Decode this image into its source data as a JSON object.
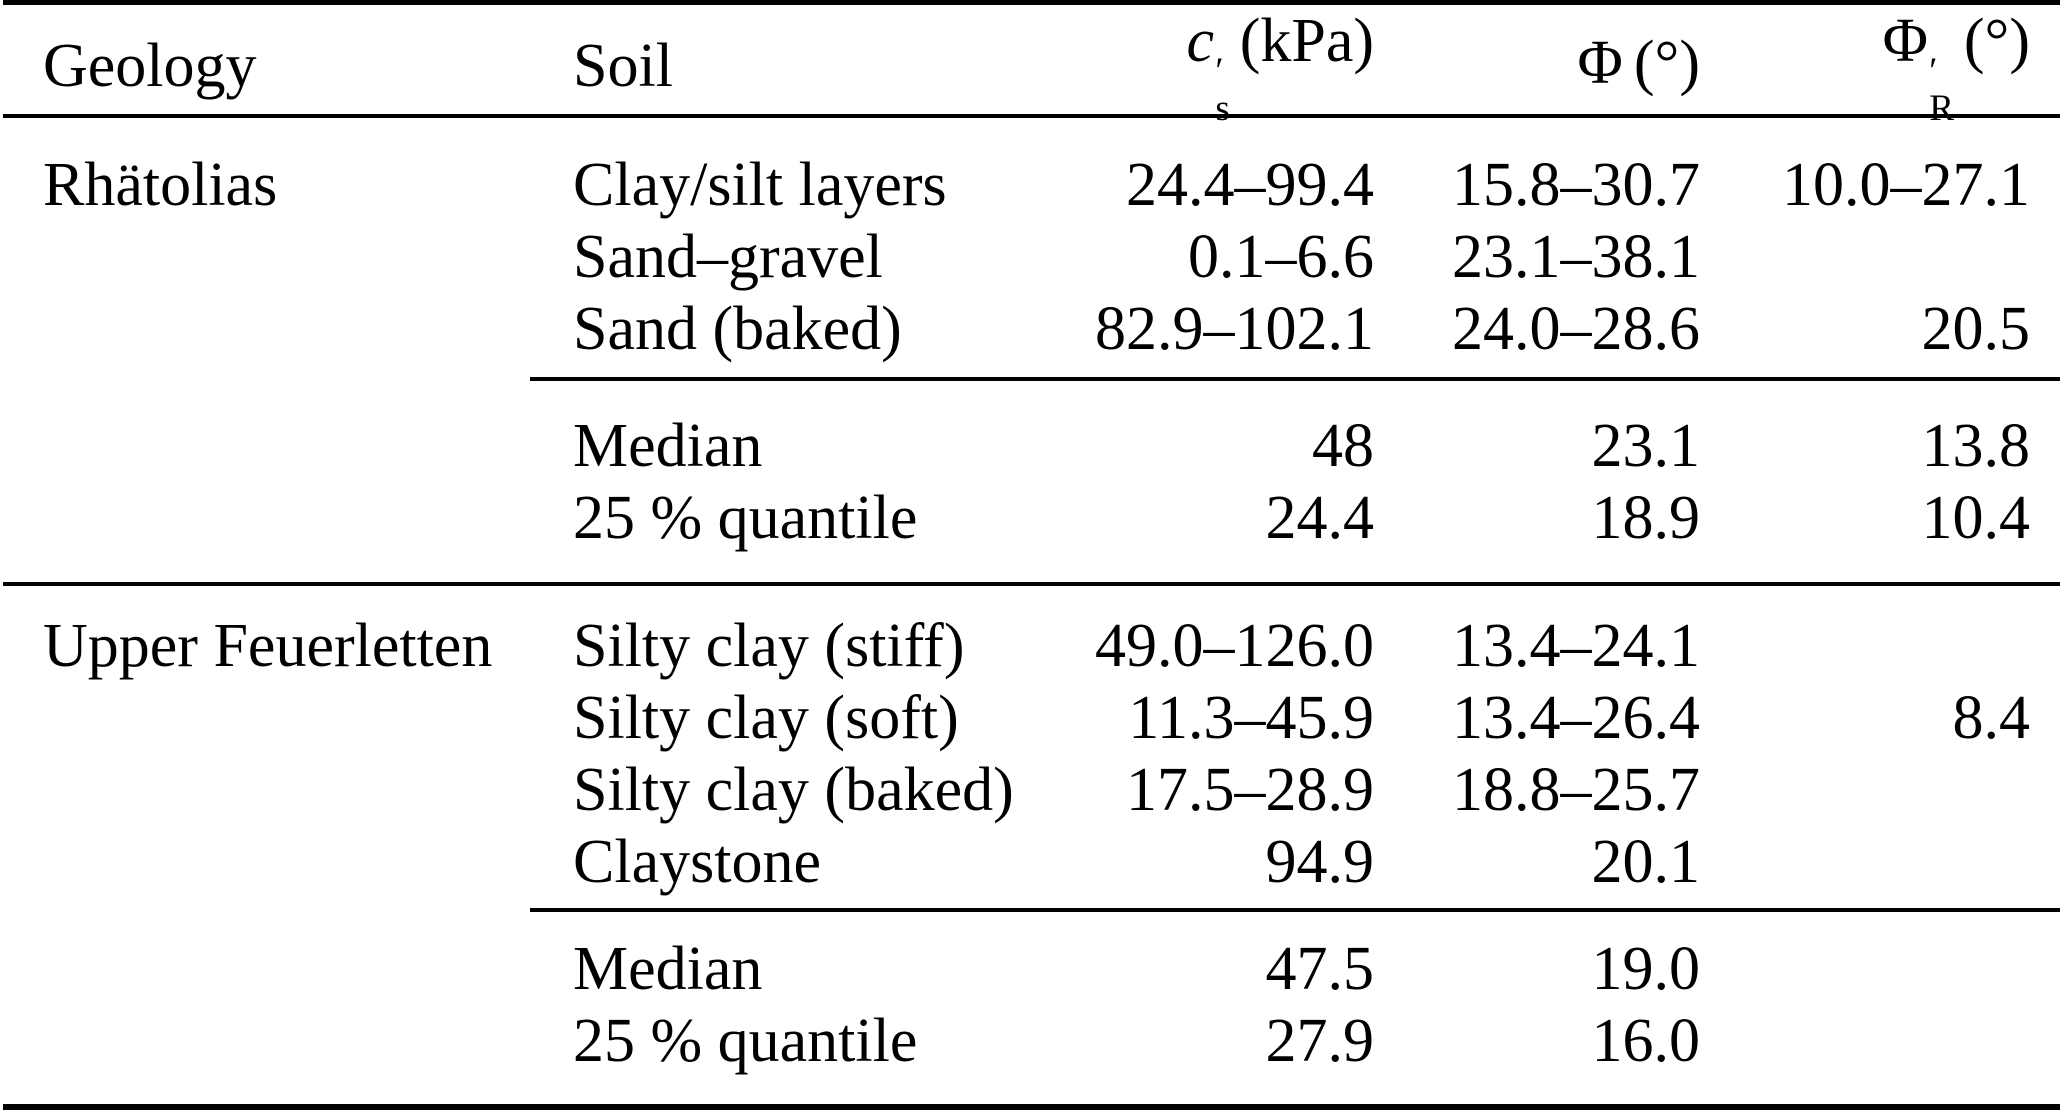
{
  "colors": {
    "text": "#000000",
    "background": "#ffffff",
    "rule": "#000000"
  },
  "table": {
    "columns": [
      {
        "label": "Geology"
      },
      {
        "label": "Soil"
      },
      {
        "base": "c",
        "prime": "′",
        "sub": "s",
        "unit": "(kPa)"
      },
      {
        "base": "Φ",
        "prime": "",
        "sub": "",
        "unit": "(°)"
      },
      {
        "base": "Φ",
        "prime": "′",
        "sub": "R",
        "unit": "(°)"
      }
    ],
    "sections": [
      {
        "geology": "Rhätolias",
        "soils": [
          {
            "soil": "Clay/silt layers",
            "c": "24.4–99.4",
            "phi": "15.8–30.7",
            "phiR": "10.0–27.1"
          },
          {
            "soil": "Sand–gravel",
            "c": "0.1–6.6",
            "phi": "23.1–38.1",
            "phiR": ""
          },
          {
            "soil": "Sand (baked)",
            "c": "82.9–102.1",
            "phi": "24.0–28.6",
            "phiR": "20.5"
          }
        ],
        "stats": [
          {
            "soil": "Median",
            "c": "48",
            "phi": "23.1",
            "phiR": "13.8"
          },
          {
            "soil": "25 % quantile",
            "c": "24.4",
            "phi": "18.9",
            "phiR": "10.4"
          }
        ]
      },
      {
        "geology": "Upper Feuerletten",
        "soils": [
          {
            "soil": "Silty clay (stiff)",
            "c": "49.0–126.0",
            "phi": "13.4–24.1",
            "phiR": ""
          },
          {
            "soil": "Silty clay (soft)",
            "c": "11.3–45.9",
            "phi": "13.4–26.4",
            "phiR": "8.4"
          },
          {
            "soil": "Silty clay (baked)",
            "c": "17.5–28.9",
            "phi": "18.8–25.7",
            "phiR": ""
          },
          {
            "soil": "Claystone",
            "c": "94.9",
            "phi": "20.1",
            "phiR": ""
          }
        ],
        "stats": [
          {
            "soil": "Median",
            "c": "47.5",
            "phi": "19.0",
            "phiR": ""
          },
          {
            "soil": "25 % quantile",
            "c": "27.9",
            "phi": "16.0",
            "phiR": ""
          }
        ]
      }
    ]
  }
}
